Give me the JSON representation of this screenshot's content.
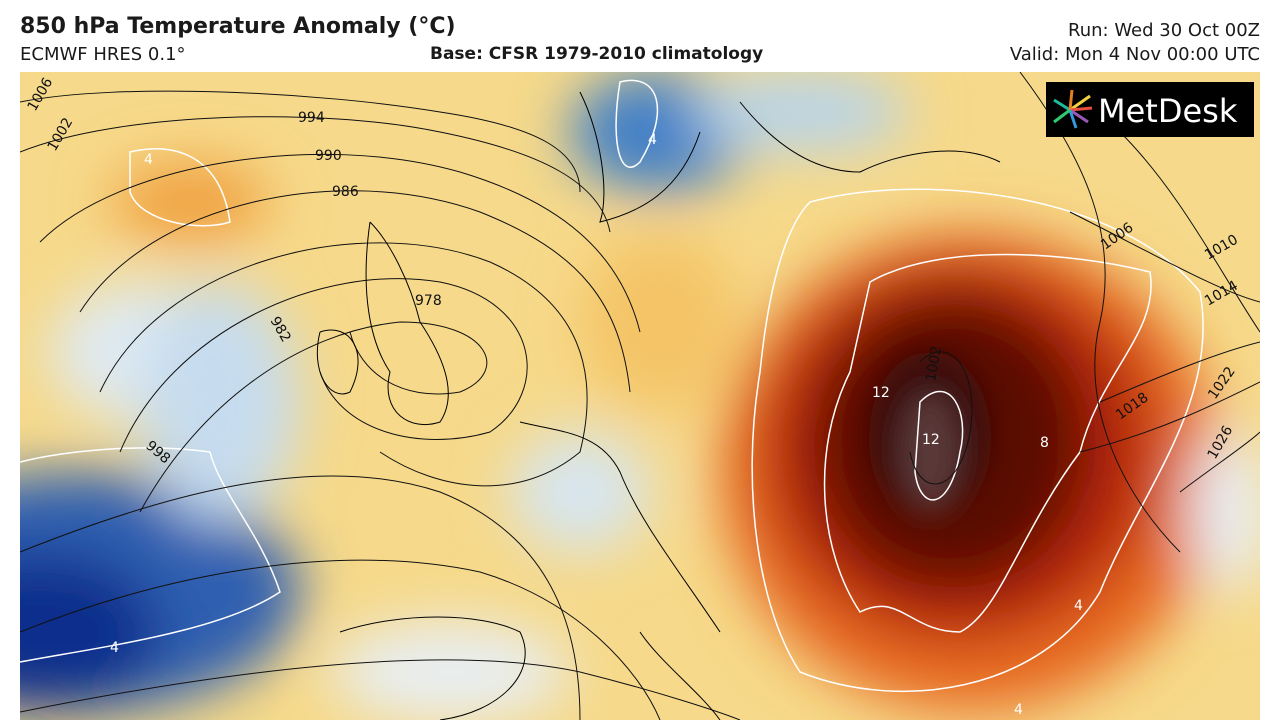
{
  "header": {
    "title": "850 hPa Temperature Anomaly (°C)",
    "model": "ECMWF HRES 0.1°",
    "base": "Base: CFSR 1979-2010 climatology",
    "run": "Run: Wed 30 Oct 00Z",
    "valid": "Valid: Mon 4 Nov 00:00 UTC"
  },
  "logo": "MetDesk",
  "map": {
    "isobar_labels": [
      "1006",
      "1002",
      "994",
      "990",
      "986",
      "982",
      "978",
      "998",
      "1006",
      "1010",
      "1014",
      "1018",
      "1022",
      "1026",
      "1002"
    ],
    "anomaly_labels": [
      "4",
      "4",
      "12",
      "12",
      "8",
      "4",
      "4",
      "4"
    ]
  }
}
